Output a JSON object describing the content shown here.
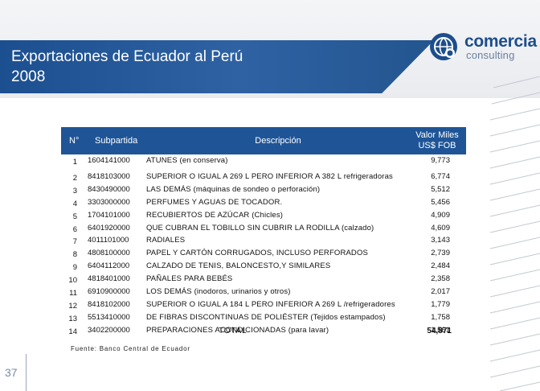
{
  "slide": {
    "title": "Exportaciones de Ecuador al Perú 2008",
    "page_number": "37",
    "source": "Fuente: Banco Central de Ecuador"
  },
  "logo": {
    "main": "comercia",
    "sub": "consulting",
    "icon": "globe-icon"
  },
  "colors": {
    "brand_blue": "#1f5597",
    "title_band": "#2e62a3"
  },
  "table": {
    "headers": {
      "n": "N°",
      "subpartida": "Subpartida",
      "descripcion": "Descripción",
      "valor_line1": "Valor Miles",
      "valor_line2": "US$ FOB"
    },
    "rows": [
      {
        "n": "1",
        "subpartida": "1604141000",
        "descripcion": "ATUNES (en conserva)",
        "valor": "9,773"
      },
      {
        "n": "2",
        "subpartida": "8418103000",
        "descripcion": "SUPERIOR O IGUAL A 269 L PERO INFERIOR A 382 L refrigeradoras",
        "valor": "6,774"
      },
      {
        "n": "3",
        "subpartida": "8430490000",
        "descripcion": "LAS DEMÁS (máquinas de sondeo o perforación)",
        "valor": "5,512"
      },
      {
        "n": "4",
        "subpartida": "3303000000",
        "descripcion": "PERFUMES Y AGUAS DE TOCADOR.",
        "valor": "5,456"
      },
      {
        "n": "5",
        "subpartida": "1704101000",
        "descripcion": "RECUBIERTOS DE AZÚCAR (Chicles)",
        "valor": "4,909"
      },
      {
        "n": "6",
        "subpartida": "6401920000",
        "descripcion": "QUE CUBRAN EL TOBILLO SIN CUBRIR LA RODILLA (calzado)",
        "valor": "4,609"
      },
      {
        "n": "7",
        "subpartida": "4011101000",
        "descripcion": "RADIALES",
        "valor": "3,143"
      },
      {
        "n": "8",
        "subpartida": "4808100000",
        "descripcion": "PAPEL Y CARTÓN CORRUGADOS, INCLUSO PERFORADOS",
        "valor": "2,739"
      },
      {
        "n": "9",
        "subpartida": "6404112000",
        "descripcion": "CALZADO DE TENIS, BALONCESTO,Y SIMILARES",
        "valor": "2,484"
      },
      {
        "n": "10",
        "subpartida": "4818401000",
        "descripcion": "PAÑALES PARA BEBÉS",
        "valor": "2,358"
      },
      {
        "n": "11",
        "subpartida": "6910900000",
        "descripcion": "LOS DEMÁS (inodoros, urinarios y otros)",
        "valor": "2,017"
      },
      {
        "n": "12",
        "subpartida": "8418102000",
        "descripcion": "SUPERIOR O IGUAL A 184 L PERO INFERIOR A 269 L /refrigeradores",
        "valor": "1,779"
      },
      {
        "n": "13",
        "subpartida": "5513410000",
        "descripcion": "DE FIBRAS DISCONTINUAS DE POLIÉSTER (Tejidos estampados)",
        "valor": "1,758"
      },
      {
        "n": "14",
        "subpartida": "3402200000",
        "descripcion": "PREPARACIONES ACONDICIONADAS (para lavar)",
        "valor": "1,561"
      }
    ],
    "total_label": "TOTAL",
    "total_value": "54,871"
  }
}
